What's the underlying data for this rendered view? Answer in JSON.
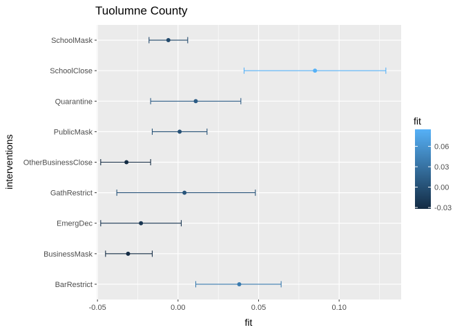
{
  "chart_data": {
    "type": "errorbar",
    "title": "Tuolumne County",
    "xlabel": "fit",
    "ylabel": "interventions",
    "xlim": [
      -0.0505,
      0.1385
    ],
    "x_ticks": [
      -0.05,
      0.0,
      0.05,
      0.1
    ],
    "x_tick_labels": [
      "-0.05",
      "0.00",
      "0.05",
      "0.10"
    ],
    "categories": [
      "SchoolMask",
      "SchoolClose",
      "Quarantine",
      "PublicMask",
      "OtherBusinessClose",
      "GathRestrict",
      "EmergDec",
      "BusinessMask",
      "BarRestrict"
    ],
    "points": [
      {
        "name": "SchoolMask",
        "fit": -0.006,
        "lower": -0.018,
        "upper": 0.006
      },
      {
        "name": "SchoolClose",
        "fit": 0.085,
        "lower": 0.041,
        "upper": 0.129
      },
      {
        "name": "Quarantine",
        "fit": 0.011,
        "lower": -0.017,
        "upper": 0.039
      },
      {
        "name": "PublicMask",
        "fit": 0.001,
        "lower": -0.016,
        "upper": 0.018
      },
      {
        "name": "OtherBusinessClose",
        "fit": -0.032,
        "lower": -0.048,
        "upper": -0.017
      },
      {
        "name": "GathRestrict",
        "fit": 0.004,
        "lower": -0.038,
        "upper": 0.048
      },
      {
        "name": "EmergDec",
        "fit": -0.023,
        "lower": -0.048,
        "upper": 0.002
      },
      {
        "name": "BusinessMask",
        "fit": -0.031,
        "lower": -0.045,
        "upper": -0.016
      },
      {
        "name": "BarRestrict",
        "fit": 0.038,
        "lower": 0.011,
        "upper": 0.064
      }
    ],
    "grid": true,
    "legend": {
      "title": "fit",
      "position": "right",
      "range": [
        -0.032,
        0.085
      ],
      "ticks": [
        -0.03,
        0.0,
        0.03,
        0.06
      ],
      "tick_labels": [
        "-0.03",
        "0.00",
        "0.03",
        "0.06"
      ],
      "color_low": "#132B43",
      "color_high": "#56B1F7"
    },
    "panel_background": "#EBEBEB",
    "grid_color": "#FFFFFF"
  }
}
